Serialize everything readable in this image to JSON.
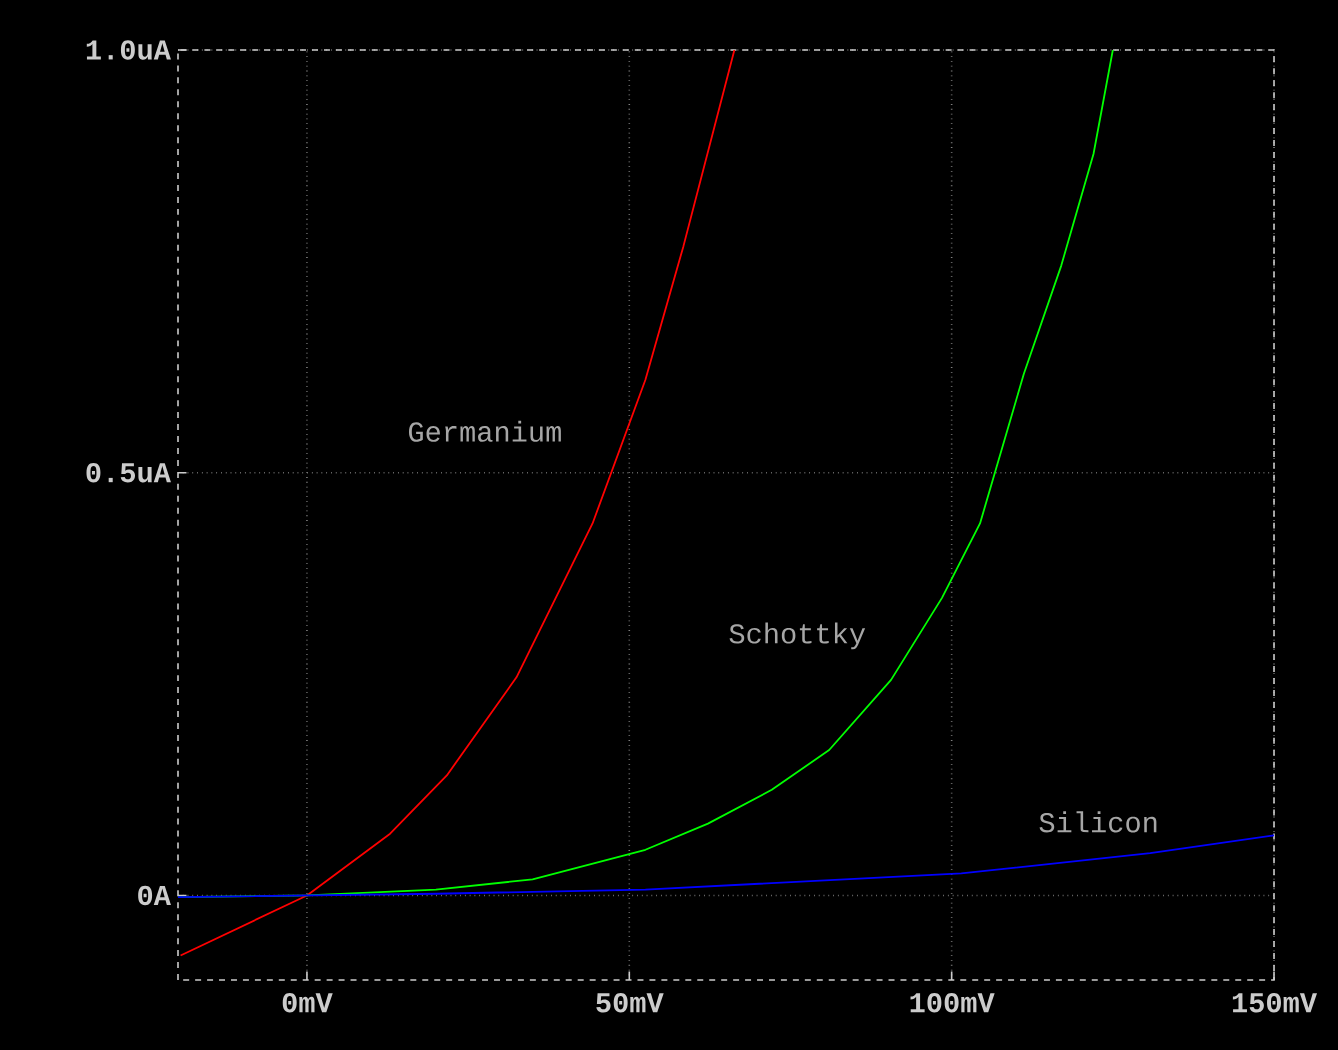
{
  "chart_data": {
    "type": "line",
    "xlim": [
      -20,
      150
    ],
    "ylim": [
      -0.1,
      1.0
    ],
    "xticks": [
      {
        "value": 0,
        "label": "0mV"
      },
      {
        "value": 50,
        "label": "50mV"
      },
      {
        "value": 100,
        "label": "100mV"
      },
      {
        "value": 150,
        "label": "150mV"
      }
    ],
    "yticks": [
      {
        "value": 0,
        "label": "0A"
      },
      {
        "value": 0.5,
        "label": "0.5uA"
      },
      {
        "value": 1.0,
        "label": "1.0uA"
      }
    ],
    "grid": true,
    "marker": "none",
    "line_style": "solid",
    "series": [
      {
        "name": "Germanium",
        "color": "#ff0000",
        "x": [
          -19.6,
          0,
          12.9,
          21.7,
          32.5,
          44.3,
          52.5,
          58.4,
          66.3
        ],
        "values": [
          -0.071,
          0,
          0.073,
          0.142,
          0.258,
          0.44,
          0.61,
          0.768,
          1.0
        ]
      },
      {
        "name": "Schottky",
        "color": "#00ff00",
        "x": [
          -20,
          0,
          20,
          35,
          52.5,
          62.2,
          72.1,
          81,
          90.6,
          98.5,
          104.4,
          111.2,
          117,
          122,
          125
        ],
        "values": [
          -0.002,
          0,
          0.007,
          0.019,
          0.054,
          0.085,
          0.125,
          0.172,
          0.255,
          0.352,
          0.44,
          0.617,
          0.745,
          0.877,
          1.0
        ]
      },
      {
        "name": "Silicon",
        "color": "#0000ff",
        "x": [
          -20,
          20,
          52.5,
          101.5,
          130.8,
          150
        ],
        "values": [
          -0.002,
          0.002,
          0.007,
          0.026,
          0.05,
          0.071
        ]
      }
    ]
  }
}
